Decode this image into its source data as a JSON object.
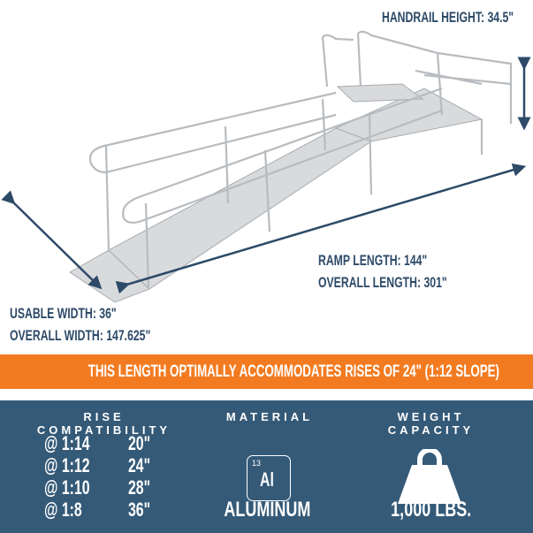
{
  "dimensions": {
    "handrail_height": "HANDRAIL HEIGHT: 34.5\"",
    "ramp_length": "RAMP LENGTH: 144\"",
    "overall_length": "OVERALL LENGTH: 301\"",
    "usable_width": "USABLE WIDTH: 36\"",
    "overall_width": "OVERALL WIDTH: 147.625\""
  },
  "banner": "THIS LENGTH OPTIMALLY ACCOMMODATES RISES OF 24\" (1:12 SLOPE)",
  "rise": {
    "title": "RISE COMPATIBILITY",
    "rows": [
      {
        "slope": "@ 1:14",
        "rise": "20\""
      },
      {
        "slope": "@ 1:12",
        "rise": "24\""
      },
      {
        "slope": "@ 1:10",
        "rise": "28\""
      },
      {
        "slope": "@ 1:8",
        "rise": "36\""
      }
    ]
  },
  "material": {
    "title": "MATERIAL",
    "atomic_number": "13",
    "symbol": "Al",
    "name": "ALUMINUM"
  },
  "weight": {
    "title": "WEIGHT CAPACITY",
    "icon": "weight-icon",
    "value": "1,000 LBS."
  },
  "colors": {
    "navy": "#2d4a68",
    "orange": "#f27b21",
    "panel": "#355a78"
  }
}
